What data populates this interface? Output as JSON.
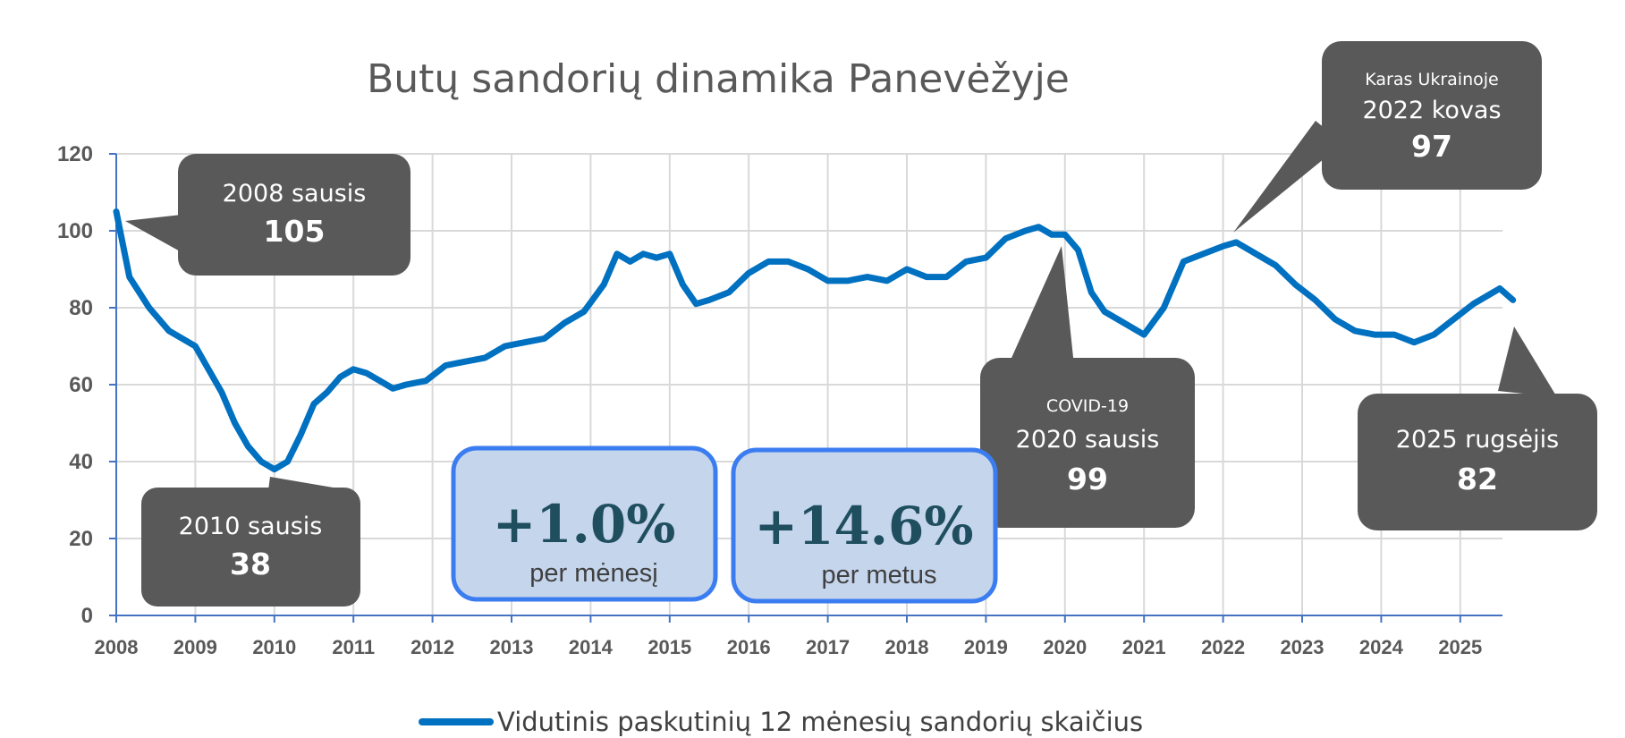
{
  "chart_data": {
    "type": "line",
    "title": "Butų sandorių dinamika Panevėžyje",
    "xlabel": "",
    "ylabel": "",
    "ylim": [
      0,
      120
    ],
    "y_ticks": [
      "0",
      "20",
      "40",
      "60",
      "80",
      "100",
      "120"
    ],
    "x_ticks": [
      "2008",
      "2009",
      "2010",
      "2011",
      "2012",
      "2013",
      "2014",
      "2015",
      "2016",
      "2017",
      "2018",
      "2019",
      "2020",
      "2021",
      "2022",
      "2023",
      "2024",
      "2025"
    ],
    "grid": true,
    "legend_position": "bottom",
    "series": [
      {
        "name": "Vidutinis paskutinių 12 mėnesių sandorių skaičius",
        "color": "#0070c0",
        "x_start": "2008-01",
        "x_end": "2025-09",
        "frequency": "monthly",
        "points": [
          [
            "2008-01",
            105
          ],
          [
            "2008-03",
            88
          ],
          [
            "2008-06",
            80
          ],
          [
            "2008-09",
            74
          ],
          [
            "2009-01",
            70
          ],
          [
            "2009-03",
            64
          ],
          [
            "2009-05",
            58
          ],
          [
            "2009-07",
            50
          ],
          [
            "2009-09",
            44
          ],
          [
            "2009-11",
            40
          ],
          [
            "2010-01",
            38
          ],
          [
            "2010-03",
            40
          ],
          [
            "2010-05",
            47
          ],
          [
            "2010-07",
            55
          ],
          [
            "2010-09",
            58
          ],
          [
            "2010-11",
            62
          ],
          [
            "2011-01",
            64
          ],
          [
            "2011-03",
            63
          ],
          [
            "2011-05",
            61
          ],
          [
            "2011-07",
            59
          ],
          [
            "2011-09",
            60
          ],
          [
            "2011-12",
            61
          ],
          [
            "2012-03",
            65
          ],
          [
            "2012-06",
            66
          ],
          [
            "2012-09",
            67
          ],
          [
            "2012-12",
            70
          ],
          [
            "2013-03",
            71
          ],
          [
            "2013-06",
            72
          ],
          [
            "2013-09",
            76
          ],
          [
            "2013-12",
            79
          ],
          [
            "2014-03",
            86
          ],
          [
            "2014-05",
            94
          ],
          [
            "2014-07",
            92
          ],
          [
            "2014-09",
            94
          ],
          [
            "2014-11",
            93
          ],
          [
            "2015-01",
            94
          ],
          [
            "2015-03",
            86
          ],
          [
            "2015-05",
            81
          ],
          [
            "2015-07",
            82
          ],
          [
            "2015-10",
            84
          ],
          [
            "2016-01",
            89
          ],
          [
            "2016-04",
            92
          ],
          [
            "2016-07",
            92
          ],
          [
            "2016-10",
            90
          ],
          [
            "2017-01",
            87
          ],
          [
            "2017-04",
            87
          ],
          [
            "2017-07",
            88
          ],
          [
            "2017-10",
            87
          ],
          [
            "2018-01",
            90
          ],
          [
            "2018-04",
            88
          ],
          [
            "2018-07",
            88
          ],
          [
            "2018-10",
            92
          ],
          [
            "2019-01",
            93
          ],
          [
            "2019-04",
            98
          ],
          [
            "2019-07",
            100
          ],
          [
            "2019-09",
            101
          ],
          [
            "2019-11",
            99
          ],
          [
            "2020-01",
            99
          ],
          [
            "2020-03",
            95
          ],
          [
            "2020-05",
            84
          ],
          [
            "2020-07",
            79
          ],
          [
            "2020-10",
            76
          ],
          [
            "2021-01",
            73
          ],
          [
            "2021-04",
            80
          ],
          [
            "2021-07",
            92
          ],
          [
            "2021-10",
            94
          ],
          [
            "2022-01",
            96
          ],
          [
            "2022-03",
            97
          ],
          [
            "2022-06",
            94
          ],
          [
            "2022-09",
            91
          ],
          [
            "2022-12",
            86
          ],
          [
            "2023-03",
            82
          ],
          [
            "2023-06",
            77
          ],
          [
            "2023-09",
            74
          ],
          [
            "2023-12",
            73
          ],
          [
            "2024-03",
            73
          ],
          [
            "2024-06",
            71
          ],
          [
            "2024-09",
            73
          ],
          [
            "2024-12",
            77
          ],
          [
            "2025-03",
            81
          ],
          [
            "2025-06",
            84
          ],
          [
            "2025-07",
            85
          ],
          [
            "2025-09",
            82
          ]
        ]
      }
    ],
    "annotations": [
      {
        "small": "",
        "label": "2008 sausis",
        "value": "105"
      },
      {
        "small": "",
        "label": "2010 sausis",
        "value": "38"
      },
      {
        "small": "COVID-19",
        "label": "2020 sausis",
        "value": "99"
      },
      {
        "small": "Karas Ukrainoje",
        "label": "2022 kovas",
        "value": "97"
      },
      {
        "small": "",
        "label": "2025 rugsėjis",
        "value": "82"
      }
    ],
    "stats": [
      {
        "value": "+1.0%",
        "label": "per mėnesį"
      },
      {
        "value": "+14.6%",
        "label": "per metus"
      }
    ]
  },
  "colors": {
    "line": "#0070c0",
    "grid": "#d9d9d9",
    "axis": "#4472c4",
    "callout_fill": "#595959",
    "stat_fill": "#c5d5ec",
    "stat_border": "#3b7df0"
  }
}
